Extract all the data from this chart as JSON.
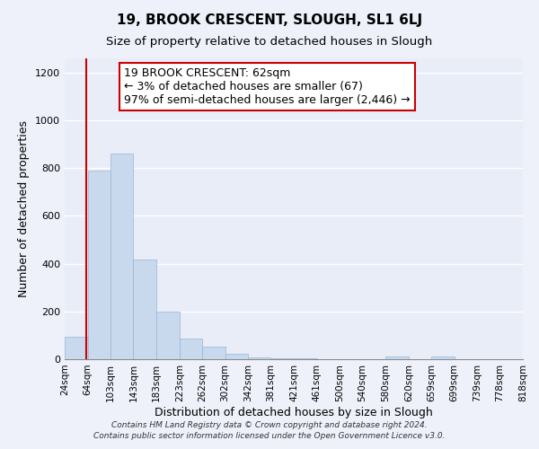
{
  "title": "19, BROOK CRESCENT, SLOUGH, SL1 6LJ",
  "subtitle": "Size of property relative to detached houses in Slough",
  "xlabel": "Distribution of detached houses by size in Slough",
  "ylabel": "Number of detached properties",
  "bar_color": "#c8d8ed",
  "bar_edge_color": "#9ab5d4",
  "vline_color": "#cc0000",
  "annotation_line1": "19 BROOK CRESCENT: 62sqm",
  "annotation_line2": "← 3% of detached houses are smaller (67)",
  "annotation_line3": "97% of semi-detached houses are larger (2,446) →",
  "annotation_box_color": "#ffffff",
  "annotation_box_edge": "#cc0000",
  "bins": [
    24,
    64,
    103,
    143,
    183,
    223,
    262,
    302,
    342,
    381,
    421,
    461,
    500,
    540,
    580,
    620,
    659,
    699,
    739,
    778,
    818
  ],
  "counts": [
    93,
    789,
    862,
    418,
    200,
    85,
    52,
    22,
    8,
    5,
    2,
    0,
    0,
    0,
    12,
    0,
    12,
    0,
    0,
    0
  ],
  "tick_labels": [
    "24sqm",
    "64sqm",
    "103sqm",
    "143sqm",
    "183sqm",
    "223sqm",
    "262sqm",
    "302sqm",
    "342sqm",
    "381sqm",
    "421sqm",
    "461sqm",
    "500sqm",
    "540sqm",
    "580sqm",
    "620sqm",
    "659sqm",
    "699sqm",
    "739sqm",
    "778sqm",
    "818sqm"
  ],
  "ylim": [
    0,
    1260
  ],
  "yticks": [
    0,
    200,
    400,
    600,
    800,
    1000,
    1200
  ],
  "footer": "Contains HM Land Registry data © Crown copyright and database right 2024.\nContains public sector information licensed under the Open Government Licence v3.0.",
  "bg_color": "#eef1fa",
  "plot_bg_color": "#e8edf8",
  "grid_color": "#ffffff",
  "title_fontsize": 11,
  "subtitle_fontsize": 9.5,
  "axis_label_fontsize": 9,
  "tick_fontsize": 7.5,
  "annotation_fontsize": 9,
  "footer_fontsize": 6.5,
  "vline_x": 62
}
